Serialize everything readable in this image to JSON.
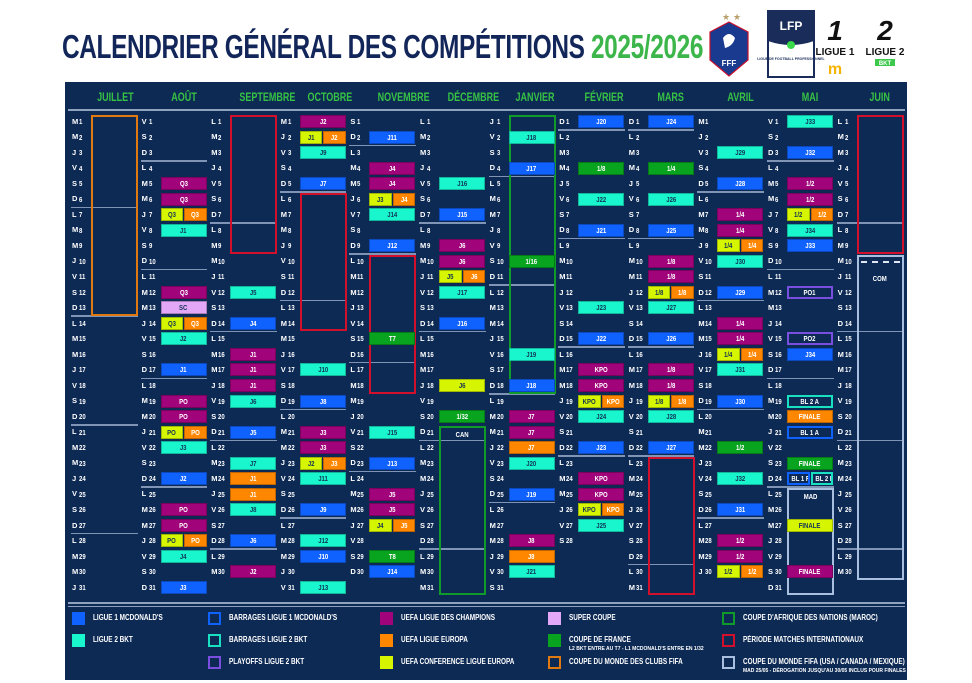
{
  "header": {
    "title": "CALENDRIER GÉNÉRAL DES COMPÉTITIONS",
    "season": "2025/2026",
    "logos": {
      "fff": "FFF",
      "lfp": "LFP",
      "lfp_sub": "LIGUE DE FOOTBALL PROFESSIONNEL",
      "ligue1": "LIGUE 1",
      "ligue2": "LIGUE 2",
      "bkt": "BKT"
    }
  },
  "types": {
    "l1": {
      "color": "#1062ff",
      "style": "fill",
      "text": "#ffffff"
    },
    "l2": {
      "color": "#19f5cd",
      "style": "fill",
      "text": "#123456"
    },
    "ucl": {
      "color": "#a1037b",
      "style": "fill",
      "text": "#ffffff"
    },
    "uel": {
      "color": "#ff8700",
      "style": "fill",
      "text": "#ffffff"
    },
    "uecl": {
      "color": "#d6f500",
      "style": "fill",
      "text": "#123456"
    },
    "sc": {
      "color": "#e2a7f6",
      "style": "fill",
      "text": "#123456"
    },
    "cdf": {
      "color": "#08a31f",
      "style": "fill",
      "text": "#ffffff"
    },
    "bl1": {
      "color": "#1062ff",
      "style": "outline",
      "text": "#ffffff"
    },
    "bl2": {
      "color": "#19e0c0",
      "style": "outline",
      "text": "#ffffff"
    },
    "po2": {
      "color": "#7a4fe0",
      "style": "outline",
      "text": "#ffffff"
    },
    "can": {
      "color": "#0f9a2a",
      "style": "outline"
    },
    "intl": {
      "color": "#d2102c",
      "style": "outline"
    },
    "cwc": {
      "color": "#e07a10",
      "style": "outline"
    },
    "wc": {
      "color": "#a9bfdf",
      "style": "outline"
    }
  },
  "months": [
    {
      "name": "JUILLET",
      "days": "MMJVSDLMMJVSDLMMJVSDLMMJVSDLMMJ",
      "events": [],
      "boxes": [
        {
          "from": 1,
          "to": 13,
          "type": "cwc"
        }
      ]
    },
    {
      "name": "AOÛT",
      "days": "VSDLMMJVSDLMMJVSDLMMJVSDLMMJVSD",
      "events": [
        {
          "d": 5,
          "t": "Q3",
          "c": "ucl"
        },
        {
          "d": 6,
          "t": "Q3",
          "c": "ucl"
        },
        {
          "d": 7,
          "s": [
            {
              "t": "Q3",
              "c": "uecl"
            },
            {
              "t": "Q3",
              "c": "uel"
            }
          ]
        },
        {
          "d": 8,
          "t": "J1",
          "c": "l2"
        },
        {
          "d": 12,
          "t": "Q3",
          "c": "ucl"
        },
        {
          "d": 13,
          "t": "SC",
          "c": "sc"
        },
        {
          "d": 14,
          "s": [
            {
              "t": "Q3",
              "c": "uecl"
            },
            {
              "t": "Q3",
              "c": "uel"
            }
          ]
        },
        {
          "d": 15,
          "t": "J2",
          "c": "l2"
        },
        {
          "d": 17,
          "t": "J1",
          "c": "l1"
        },
        {
          "d": 19,
          "t": "PO",
          "c": "ucl"
        },
        {
          "d": 20,
          "t": "PO",
          "c": "ucl"
        },
        {
          "d": 21,
          "s": [
            {
              "t": "PO",
              "c": "uecl"
            },
            {
              "t": "PO",
              "c": "uel"
            }
          ]
        },
        {
          "d": 22,
          "t": "J3",
          "c": "l2"
        },
        {
          "d": 24,
          "t": "J2",
          "c": "l1"
        },
        {
          "d": 26,
          "t": "PO",
          "c": "ucl"
        },
        {
          "d": 27,
          "t": "PO",
          "c": "ucl"
        },
        {
          "d": 28,
          "s": [
            {
              "t": "PO",
              "c": "uecl"
            },
            {
              "t": "PO",
              "c": "uel"
            }
          ]
        },
        {
          "d": 29,
          "t": "J4",
          "c": "l2"
        },
        {
          "d": 31,
          "t": "J3",
          "c": "l1"
        }
      ],
      "boxes": []
    },
    {
      "name": "SEPTEMBRE",
      "days": "LMMJVSDLMMJVSDLMMJVSDLMMJVSDLM",
      "events": [
        {
          "d": 12,
          "t": "J5",
          "c": "l2"
        },
        {
          "d": 14,
          "t": "J4",
          "c": "l1"
        },
        {
          "d": 16,
          "t": "J1",
          "c": "ucl"
        },
        {
          "d": 17,
          "t": "J1",
          "c": "ucl"
        },
        {
          "d": 18,
          "t": "J1",
          "c": "ucl"
        },
        {
          "d": 19,
          "t": "J6",
          "c": "l2"
        },
        {
          "d": 21,
          "t": "J5",
          "c": "l1"
        },
        {
          "d": 23,
          "t": "J7",
          "c": "l2"
        },
        {
          "d": 24,
          "t": "J1",
          "c": "uel"
        },
        {
          "d": 25,
          "t": "J1",
          "c": "uel"
        },
        {
          "d": 26,
          "t": "J8",
          "c": "l2"
        },
        {
          "d": 28,
          "t": "J6",
          "c": "l1"
        },
        {
          "d": 30,
          "t": "J2",
          "c": "ucl"
        }
      ],
      "boxes": [
        {
          "from": 1,
          "to": 9,
          "type": "intl"
        }
      ]
    },
    {
      "name": "OCTOBRE",
      "days": "MJVSDLMMJVSDLMMJVSDLMMJVSDLMMJV",
      "events": [
        {
          "d": 1,
          "t": "J2",
          "c": "ucl"
        },
        {
          "d": 2,
          "s": [
            {
              "t": "J1",
              "c": "uecl"
            },
            {
              "t": "J2",
              "c": "uel"
            }
          ]
        },
        {
          "d": 3,
          "t": "J9",
          "c": "l2"
        },
        {
          "d": 5,
          "t": "J7",
          "c": "l1"
        },
        {
          "d": 17,
          "t": "J10",
          "c": "l2"
        },
        {
          "d": 19,
          "t": "J8",
          "c": "l1"
        },
        {
          "d": 21,
          "t": "J3",
          "c": "ucl"
        },
        {
          "d": 22,
          "t": "J3",
          "c": "ucl"
        },
        {
          "d": 23,
          "s": [
            {
              "t": "J2",
              "c": "uecl"
            },
            {
              "t": "J3",
              "c": "uel"
            }
          ]
        },
        {
          "d": 24,
          "t": "J11",
          "c": "l2"
        },
        {
          "d": 26,
          "t": "J9",
          "c": "l1"
        },
        {
          "d": 28,
          "t": "J12",
          "c": "l2"
        },
        {
          "d": 29,
          "t": "J10",
          "c": "l1"
        },
        {
          "d": 31,
          "t": "J13",
          "c": "l2"
        }
      ],
      "boxes": [
        {
          "from": 6,
          "to": 14,
          "type": "intl"
        }
      ]
    },
    {
      "name": "NOVEMBRE",
      "days": "SDLMMJVSDLMMJVSDLMMJVSDLMMJVSD",
      "events": [
        {
          "d": 2,
          "t": "J11",
          "c": "l1"
        },
        {
          "d": 4,
          "t": "J4",
          "c": "ucl"
        },
        {
          "d": 5,
          "t": "J4",
          "c": "ucl"
        },
        {
          "d": 6,
          "s": [
            {
              "t": "J3",
              "c": "uecl"
            },
            {
              "t": "J4",
              "c": "uel"
            }
          ]
        },
        {
          "d": 7,
          "t": "J14",
          "c": "l2"
        },
        {
          "d": 9,
          "t": "J12",
          "c": "l1"
        },
        {
          "d": 15,
          "t": "T7",
          "c": "cdf"
        },
        {
          "d": 21,
          "t": "J15",
          "c": "l2"
        },
        {
          "d": 23,
          "t": "J13",
          "c": "l1"
        },
        {
          "d": 25,
          "t": "J5",
          "c": "ucl"
        },
        {
          "d": 26,
          "t": "J5",
          "c": "ucl"
        },
        {
          "d": 27,
          "s": [
            {
              "t": "J4",
              "c": "uecl"
            },
            {
              "t": "J5",
              "c": "uel"
            }
          ]
        },
        {
          "d": 29,
          "t": "T8",
          "c": "cdf"
        },
        {
          "d": 30,
          "t": "J14",
          "c": "l1"
        }
      ],
      "boxes": [
        {
          "from": 10,
          "to": 18,
          "type": "intl"
        }
      ]
    },
    {
      "name": "DÉCEMBRE",
      "days": "LMMJVSDLMMJVSDLMMJVSDLMMJVSDLMM",
      "events": [
        {
          "d": 5,
          "t": "J16",
          "c": "l2"
        },
        {
          "d": 7,
          "t": "J15",
          "c": "l1"
        },
        {
          "d": 9,
          "t": "J6",
          "c": "ucl"
        },
        {
          "d": 10,
          "t": "J6",
          "c": "ucl"
        },
        {
          "d": 11,
          "s": [
            {
              "t": "J5",
              "c": "uecl"
            },
            {
              "t": "J6",
              "c": "uel"
            }
          ]
        },
        {
          "d": 12,
          "t": "J17",
          "c": "l2"
        },
        {
          "d": 14,
          "t": "J16",
          "c": "l1"
        },
        {
          "d": 18,
          "t": "J6",
          "c": "uecl"
        },
        {
          "d": 20,
          "t": "1/32",
          "c": "cdf"
        }
      ],
      "boxes": [
        {
          "from": 21,
          "to": 31,
          "type": "can",
          "label": "CAN"
        }
      ]
    },
    {
      "name": "JANVIER",
      "days": "JVSDLMMJVSDLMMJVSDLMMJVSDLMMJVS",
      "events": [
        {
          "d": 2,
          "t": "J18",
          "c": "l2"
        },
        {
          "d": 4,
          "t": "J17",
          "c": "l1"
        },
        {
          "d": 10,
          "t": "1/16",
          "c": "cdf"
        },
        {
          "d": 16,
          "t": "J19",
          "c": "l2"
        },
        {
          "d": 18,
          "t": "J18",
          "c": "l1"
        },
        {
          "d": 20,
          "t": "J7",
          "c": "ucl"
        },
        {
          "d": 21,
          "t": "J7",
          "c": "ucl"
        },
        {
          "d": 22,
          "t": "J7",
          "c": "uel"
        },
        {
          "d": 23,
          "t": "J20",
          "c": "l2"
        },
        {
          "d": 25,
          "t": "J19",
          "c": "l1"
        },
        {
          "d": 28,
          "t": "J8",
          "c": "ucl"
        },
        {
          "d": 29,
          "t": "J8",
          "c": "uel"
        },
        {
          "d": 30,
          "t": "J21",
          "c": "l2"
        }
      ],
      "boxes": [
        {
          "from": 1,
          "to": 18,
          "type": "can"
        }
      ]
    },
    {
      "name": "FÉVRIER",
      "days": "DLMMJVSDLMMJVSDLMMJVSDLMMJVS",
      "events": [
        {
          "d": 1,
          "t": "J20",
          "c": "l1"
        },
        {
          "d": 4,
          "t": "1/8",
          "c": "cdf"
        },
        {
          "d": 6,
          "t": "J22",
          "c": "l2"
        },
        {
          "d": 8,
          "t": "J21",
          "c": "l1"
        },
        {
          "d": 13,
          "t": "J23",
          "c": "l2"
        },
        {
          "d": 15,
          "t": "J22",
          "c": "l1"
        },
        {
          "d": 17,
          "t": "KPO",
          "c": "ucl"
        },
        {
          "d": 18,
          "t": "KPO",
          "c": "ucl"
        },
        {
          "d": 19,
          "s": [
            {
              "t": "KPO",
              "c": "uecl"
            },
            {
              "t": "KPO",
              "c": "uel"
            }
          ]
        },
        {
          "d": 20,
          "t": "J24",
          "c": "l2"
        },
        {
          "d": 22,
          "t": "J23",
          "c": "l1"
        },
        {
          "d": 24,
          "t": "KPO",
          "c": "ucl"
        },
        {
          "d": 25,
          "t": "KPO",
          "c": "ucl"
        },
        {
          "d": 26,
          "s": [
            {
              "t": "KPO",
              "c": "uecl"
            },
            {
              "t": "KPO",
              "c": "uel"
            }
          ]
        },
        {
          "d": 27,
          "t": "J25",
          "c": "l2"
        }
      ],
      "boxes": []
    },
    {
      "name": "MARS",
      "days": "DLMMJVSDLMMJVSDLMMJVSDLMMJVSDLM",
      "events": [
        {
          "d": 1,
          "t": "J24",
          "c": "l1"
        },
        {
          "d": 4,
          "t": "1/4",
          "c": "cdf"
        },
        {
          "d": 6,
          "t": "J26",
          "c": "l2"
        },
        {
          "d": 8,
          "t": "J25",
          "c": "l1"
        },
        {
          "d": 10,
          "t": "1/8",
          "c": "ucl"
        },
        {
          "d": 11,
          "t": "1/8",
          "c": "ucl"
        },
        {
          "d": 12,
          "s": [
            {
              "t": "1/8",
              "c": "uecl"
            },
            {
              "t": "1/8",
              "c": "uel"
            }
          ]
        },
        {
          "d": 13,
          "t": "J27",
          "c": "l2"
        },
        {
          "d": 15,
          "t": "J26",
          "c": "l1"
        },
        {
          "d": 17,
          "t": "1/8",
          "c": "ucl"
        },
        {
          "d": 18,
          "t": "1/8",
          "c": "ucl"
        },
        {
          "d": 19,
          "s": [
            {
              "t": "1/8",
              "c": "uecl"
            },
            {
              "t": "1/8",
              "c": "uel"
            }
          ]
        },
        {
          "d": 20,
          "t": "J28",
          "c": "l2"
        },
        {
          "d": 22,
          "t": "J27",
          "c": "l1"
        }
      ],
      "boxes": [
        {
          "from": 23,
          "to": 31,
          "type": "intl"
        }
      ]
    },
    {
      "name": "AVRIL",
      "days": "MJVSDLMMJVSDLMMJVSDLMMJVSDLMMJ",
      "events": [
        {
          "d": 3,
          "t": "J29",
          "c": "l2"
        },
        {
          "d": 5,
          "t": "J28",
          "c": "l1"
        },
        {
          "d": 7,
          "t": "1/4",
          "c": "ucl"
        },
        {
          "d": 8,
          "t": "1/4",
          "c": "ucl"
        },
        {
          "d": 9,
          "s": [
            {
              "t": "1/4",
              "c": "uecl"
            },
            {
              "t": "1/4",
              "c": "uel"
            }
          ]
        },
        {
          "d": 10,
          "t": "J30",
          "c": "l2"
        },
        {
          "d": 12,
          "t": "J29",
          "c": "l1"
        },
        {
          "d": 14,
          "t": "1/4",
          "c": "ucl"
        },
        {
          "d": 15,
          "t": "1/4",
          "c": "ucl"
        },
        {
          "d": 16,
          "s": [
            {
              "t": "1/4",
              "c": "uecl"
            },
            {
              "t": "1/4",
              "c": "uel"
            }
          ]
        },
        {
          "d": 17,
          "t": "J31",
          "c": "l2"
        },
        {
          "d": 19,
          "t": "J30",
          "c": "l1"
        },
        {
          "d": 22,
          "t": "1/2",
          "c": "cdf"
        },
        {
          "d": 24,
          "t": "J32",
          "c": "l2"
        },
        {
          "d": 26,
          "t": "J31",
          "c": "l1"
        },
        {
          "d": 28,
          "t": "1/2",
          "c": "ucl"
        },
        {
          "d": 29,
          "t": "1/2",
          "c": "ucl"
        },
        {
          "d": 30,
          "s": [
            {
              "t": "1/2",
              "c": "uecl"
            },
            {
              "t": "1/2",
              "c": "uel"
            }
          ]
        }
      ],
      "boxes": []
    },
    {
      "name": "MAI",
      "days": "VSDLMMJVSDLMMJVSDLMMJVSDLMMJVSD",
      "events": [
        {
          "d": 1,
          "t": "J33",
          "c": "l2"
        },
        {
          "d": 3,
          "t": "J32",
          "c": "l1"
        },
        {
          "d": 5,
          "t": "1/2",
          "c": "ucl"
        },
        {
          "d": 6,
          "t": "1/2",
          "c": "ucl"
        },
        {
          "d": 7,
          "s": [
            {
              "t": "1/2",
              "c": "uecl"
            },
            {
              "t": "1/2",
              "c": "uel"
            }
          ]
        },
        {
          "d": 8,
          "t": "J34",
          "c": "l2"
        },
        {
          "d": 9,
          "t": "J33",
          "c": "l1"
        },
        {
          "d": 12,
          "t": "PO1",
          "c": "po2"
        },
        {
          "d": 15,
          "t": "PO2",
          "c": "po2"
        },
        {
          "d": 16,
          "t": "J34",
          "c": "l1"
        },
        {
          "d": 19,
          "t": "BL 2 A",
          "c": "bl2"
        },
        {
          "d": 20,
          "t": "FINALE",
          "c": "uel"
        },
        {
          "d": 21,
          "t": "BL 1 A",
          "c": "bl1"
        },
        {
          "d": 23,
          "t": "FINALE",
          "c": "cdf"
        },
        {
          "d": 24,
          "s": [
            {
              "t": "BL 1 R",
              "c": "bl1"
            },
            {
              "t": "BL 2 R",
              "c": "bl2"
            }
          ]
        },
        {
          "d": 27,
          "t": "FINALE",
          "c": "uecl"
        },
        {
          "d": 30,
          "t": "FINALE",
          "c": "ucl"
        }
      ],
      "boxes": [
        {
          "from": 25,
          "to": 31,
          "type": "wc",
          "label": "MAD"
        }
      ]
    },
    {
      "name": "JUIN",
      "days": "LMMJVSDLMMJVSDLMMJVSDLMMJVSDLM",
      "events": [],
      "boxes": [
        {
          "from": 1,
          "to": 9,
          "type": "intl"
        },
        {
          "from": 10,
          "to": 30,
          "type": "wc",
          "label": "COM",
          "dashed": true
        }
      ]
    }
  ],
  "legend": [
    {
      "type": "l1",
      "label": "LIGUE 1 MCDONALD'S"
    },
    {
      "type": "l2",
      "label": "LIGUE 2 BKT"
    },
    {
      "type": "bl1",
      "label": "BARRAGES LIGUE 1 MCDONALD'S"
    },
    {
      "type": "bl2",
      "label": "BARRAGES LIGUE 2 BKT"
    },
    {
      "type": "po2",
      "label": "PLAYOFFS LIGUE 2 BKT"
    },
    {
      "type": "ucl",
      "label": "UEFA LIGUE DES CHAMPIONS"
    },
    {
      "type": "uel",
      "label": "UEFA LIGUE EUROPA"
    },
    {
      "type": "uecl",
      "label": "UEFA CONFERENCE LIGUE EUROPA"
    },
    {
      "type": "sc",
      "label": "SUPER COUPE"
    },
    {
      "type": "cdf",
      "label": "COUPE DE FRANCE",
      "sub": "L2 BKT ENTRE AU T7 - L1 MCDONALD'S ENTRE EN 1/32"
    },
    {
      "type": "cwc",
      "label": "COUPE DU MONDE DES CLUBS FIFA"
    },
    {
      "type": "can",
      "label": "COUPE D'AFRIQUE DES NATIONS (MAROC)"
    },
    {
      "type": "intl",
      "label": "PÉRIODE MATCHES INTERNATIONAUX"
    },
    {
      "type": "wc",
      "label": "COUPE DU MONDE FIFA (USA / CANADA / MEXIQUE)",
      "sub": "MAD 25/05 - DÉROGATION JUSQU'AU 30/05 INCLUS POUR FINALES UECL/UCL"
    }
  ]
}
